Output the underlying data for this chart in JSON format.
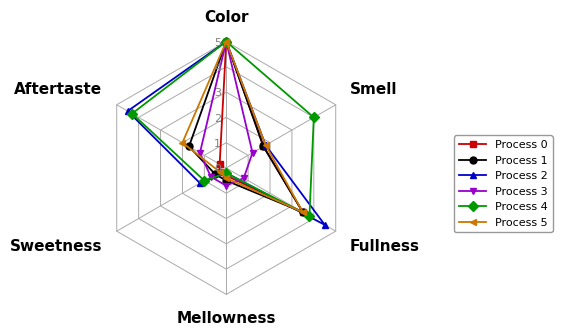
{
  "categories": [
    "Color",
    "Smell",
    "Fullness",
    "Mellowness",
    "Sweetness",
    "Aftertaste"
  ],
  "processes": [
    {
      "name": "Process 0",
      "values": [
        5,
        1.7,
        3.5,
        0.3,
        0.3,
        0.3
      ],
      "color": "#cc0000",
      "marker": "s",
      "markersize": 5
    },
    {
      "name": "Process 1",
      "values": [
        5,
        1.7,
        3.5,
        0.5,
        0.5,
        1.7
      ],
      "color": "#000000",
      "marker": "o",
      "markersize": 5
    },
    {
      "name": "Process 2",
      "values": [
        5,
        1.8,
        4.5,
        0.2,
        1.2,
        4.5
      ],
      "color": "#0000cc",
      "marker": "^",
      "markersize": 5
    },
    {
      "name": "Process 3",
      "values": [
        5,
        1.2,
        0.8,
        0.7,
        0.7,
        1.2
      ],
      "color": "#9900cc",
      "marker": "v",
      "markersize": 5
    },
    {
      "name": "Process 4",
      "values": [
        5,
        4.0,
        3.8,
        0.2,
        1.0,
        4.3
      ],
      "color": "#009900",
      "marker": "D",
      "markersize": 5
    },
    {
      "name": "Process 5",
      "values": [
        5,
        1.8,
        3.5,
        0.4,
        0.3,
        2.0
      ],
      "color": "#cc7700",
      "marker": "<",
      "markersize": 5
    }
  ],
  "ylim": [
    0,
    5
  ],
  "yticks": [
    1,
    2,
    3,
    4,
    5
  ],
  "ytick_labels": [
    "1",
    "2",
    "3",
    "4",
    "5"
  ],
  "n_rings": 5,
  "grid_color": "#aaaaaa",
  "spoke_color": "#aaaaaa",
  "background_color": "#ffffff",
  "label_fontsize": 11,
  "legend_fontsize": 8,
  "linewidth": 1.3
}
